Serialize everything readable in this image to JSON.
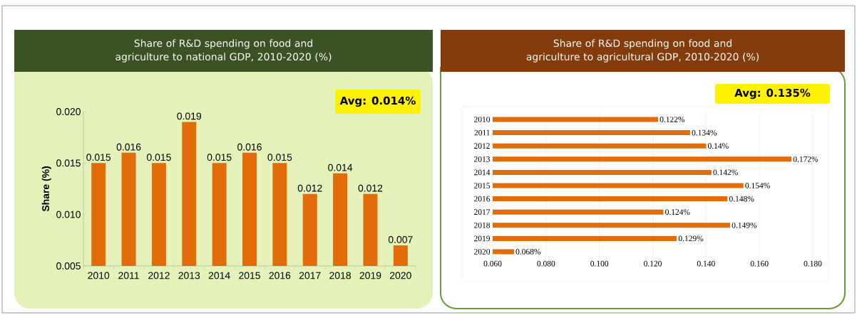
{
  "chart_data": [
    {
      "type": "bar",
      "title": "Share of R&D spending on food and agriculture to national GDP, 2010-2020 (%)",
      "ylabel": "Share (%)",
      "categories": [
        "2010",
        "2011",
        "2012",
        "2013",
        "2014",
        "2015",
        "2016",
        "2017",
        "2018",
        "2019",
        "2020"
      ],
      "values": [
        0.015,
        0.016,
        0.015,
        0.019,
        0.015,
        0.016,
        0.015,
        0.012,
        0.014,
        0.012,
        0.007
      ],
      "color": "#e36c0a",
      "ylim": [
        0.005,
        0.02
      ],
      "yticks": [
        0.005,
        {
          "value": 0.01,
          "label": "0.010"
        },
        0.015,
        {
          "value": 0.02,
          "label": "0.020"
        }
      ],
      "data_labels": true,
      "grid": false,
      "annotations": [
        "Avg: 0.014%"
      ]
    },
    {
      "type": "bar",
      "orientation": "horizontal",
      "title": "Share of R&D spending on food and agriculture to agricultural GDP, 2010-2020 (%)",
      "categories": [
        "2010",
        "2011",
        "2012",
        "2013",
        "2014",
        "2015",
        "2016",
        "2017",
        "2018",
        "2019",
        "2020"
      ],
      "values": [
        0.122,
        0.134,
        0.14,
        0.172,
        0.142,
        0.154,
        0.148,
        0.124,
        0.149,
        0.129,
        0.068
      ],
      "value_labels": [
        "0.122%",
        "0.134%",
        "0.14%",
        "0.172%",
        "0.142%",
        "0.154%",
        "0.148%",
        "0.124%",
        "0.149%",
        "0.129%",
        "0.068%"
      ],
      "color": "#e36c0a",
      "xlim": [
        0.06,
        0.18
      ],
      "xticks": [
        {
          "value": 0.06,
          "label": "0.060"
        },
        {
          "value": 0.08,
          "label": "0.080"
        },
        {
          "value": 0.1,
          "label": "0.100"
        },
        {
          "value": 0.12,
          "label": "0.120"
        },
        {
          "value": 0.14,
          "label": "0.140"
        },
        {
          "value": 0.16,
          "label": "0.160"
        },
        {
          "value": 0.18,
          "label": "0.180"
        }
      ],
      "grid": "x",
      "annotations": [
        "Avg: 0.135%"
      ]
    }
  ]
}
